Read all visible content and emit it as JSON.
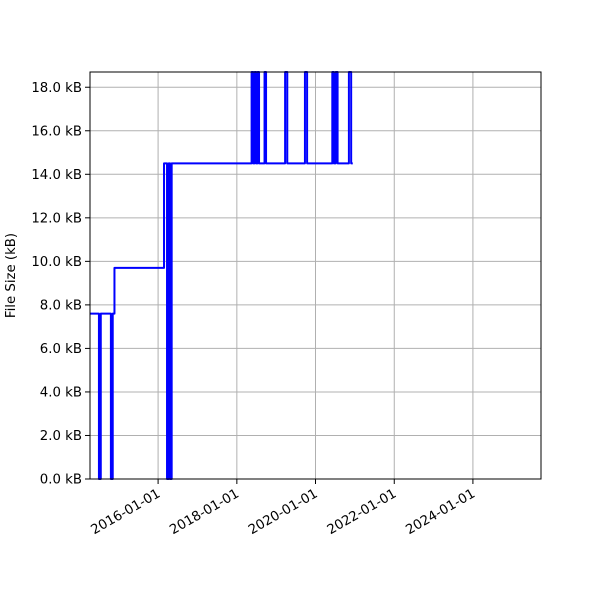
{
  "figure": {
    "background": "#ffffff"
  },
  "chart_data": {
    "type": "line",
    "subtype": "step-post",
    "title": "",
    "xlabel": "",
    "ylabel": "File Size (kB)",
    "grid": true,
    "legend_position": "none",
    "line_color": "#0000ff",
    "line_width": 2,
    "grid_color": "#b0b0b0",
    "axis_color": "#000000",
    "x_tick_labels": [
      "2016-01-01",
      "2018-01-01",
      "2020-01-01",
      "2022-01-01",
      "2024-01-01"
    ],
    "x_tick_rotation_deg": 30,
    "y_tick_values": [
      0,
      2,
      4,
      6,
      8,
      10,
      12,
      14,
      16,
      18
    ],
    "y_tick_labels": [
      "0.0 kB",
      "2.0 kB",
      "4.0 kB",
      "6.0 kB",
      "8.0 kB",
      "10.0 kB",
      "12.0 kB",
      "14.0 kB",
      "16.0 kB",
      "18.0 kB"
    ],
    "xlim": [
      "2014-04-09",
      "2025-09-24"
    ],
    "ylim": [
      0,
      18.7
    ],
    "y_unit": "kB",
    "points": [
      [
        "2014-04-09",
        7.6
      ],
      [
        "2014-07-01",
        0.0
      ],
      [
        "2014-07-18",
        7.6
      ],
      [
        "2014-10-20",
        0.0
      ],
      [
        "2014-11-06",
        7.6
      ],
      [
        "2014-11-22",
        9.7
      ],
      [
        "2016-02-25",
        14.5
      ],
      [
        "2016-03-24",
        0.0
      ],
      [
        "2016-04-08",
        14.5
      ],
      [
        "2016-04-21",
        0.0
      ],
      [
        "2016-05-06",
        14.5
      ],
      [
        "2018-05-18",
        18.7
      ],
      [
        "2018-06-02",
        14.5
      ],
      [
        "2018-06-15",
        18.7
      ],
      [
        "2018-06-29",
        14.5
      ],
      [
        "2018-07-12",
        18.7
      ],
      [
        "2018-07-26",
        14.5
      ],
      [
        "2018-09-15",
        18.7
      ],
      [
        "2018-09-29",
        14.5
      ],
      [
        "2019-03-25",
        18.7
      ],
      [
        "2019-04-14",
        14.5
      ],
      [
        "2019-09-25",
        18.7
      ],
      [
        "2019-10-15",
        14.5
      ],
      [
        "2020-06-05",
        18.7
      ],
      [
        "2020-06-20",
        14.5
      ],
      [
        "2020-07-06",
        18.7
      ],
      [
        "2020-07-24",
        14.5
      ],
      [
        "2020-11-06",
        18.7
      ],
      [
        "2020-11-27",
        14.5
      ],
      [
        "2020-12-12",
        14.5
      ]
    ]
  }
}
